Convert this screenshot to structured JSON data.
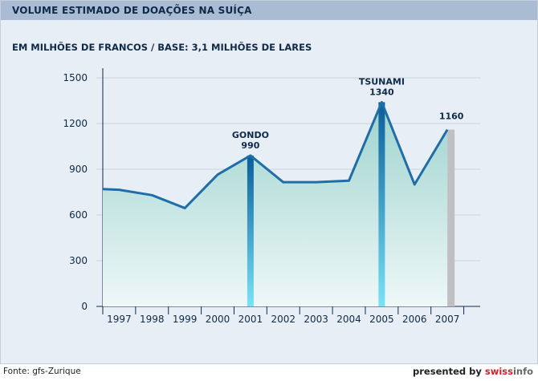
{
  "header": {
    "title": "VOLUME ESTIMADO DE DOAÇÕES NA SUÍÇA"
  },
  "subtitle": "EM MILHÕES DE FRANCOS / BASE: 3,1 MILHÕES DE LARES",
  "footer": {
    "source": "Fonte: gfs-Zurique",
    "presented_by": "presented by ",
    "brand_a": "swiss",
    "brand_b": "info"
  },
  "colors": {
    "line": "#1f6ea8",
    "fill_top": "#9dd3cf",
    "fill_bottom": "#eef8f7",
    "spike_top": "#0a5d98",
    "spike_bottom": "#79e3f6",
    "bar_2007": "#c0c0c4",
    "grid": "#c8d2dc",
    "axis": "#0f2a48"
  },
  "chart_data": {
    "type": "area",
    "x": [
      1996.5,
      1997,
      1998,
      1999,
      2000,
      2001,
      2002,
      2003,
      2004,
      2005,
      2006,
      2007
    ],
    "y": [
      770,
      765,
      730,
      645,
      865,
      990,
      815,
      815,
      825,
      1340,
      800,
      1160
    ],
    "xticks": [
      "1997",
      "1998",
      "1999",
      "2000",
      "2001",
      "2002",
      "2003",
      "2004",
      "2005",
      "2006",
      "2007"
    ],
    "yticks": [
      "0",
      "300",
      "600",
      "900",
      "1200",
      "1500"
    ],
    "ylim": [
      0,
      1500
    ],
    "grid": true,
    "annotations": [
      {
        "x": 2001,
        "value": 990,
        "label": "GONDO",
        "value_label": "990"
      },
      {
        "x": 2005,
        "value": 1340,
        "label": "TSUNAMI",
        "value_label": "1340"
      },
      {
        "x": 2007,
        "value": 1160,
        "label": "",
        "value_label": "1160"
      }
    ]
  }
}
